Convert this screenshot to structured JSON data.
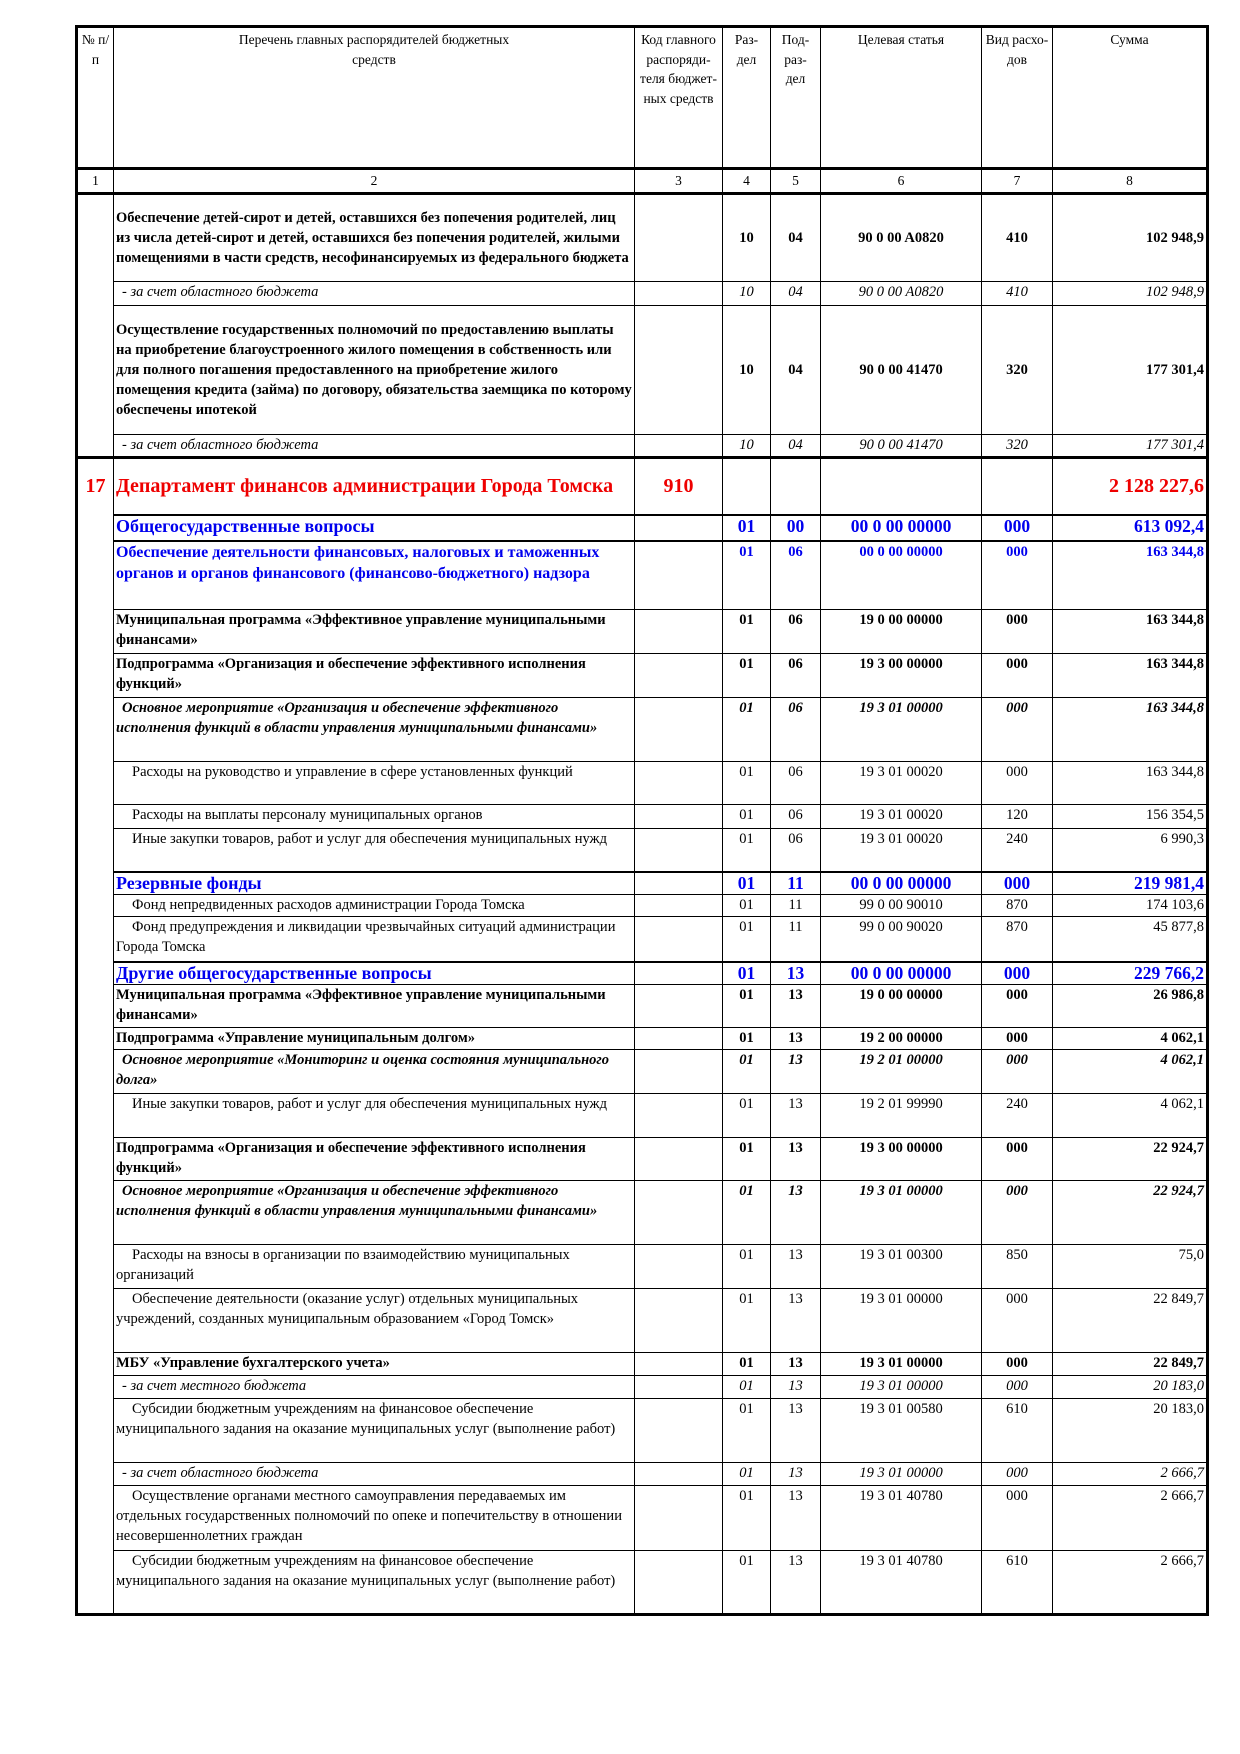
{
  "header": {
    "columns": [
      "№ п/п",
      "Перечень главных распорядителей бюджетных средств",
      "Код главного распоряди-теля бюджет-ных средств",
      "Раз-дел",
      "Под-раз-дел",
      "Целевая статья",
      "Вид расхо-дов",
      "Сумма"
    ],
    "numbers": [
      "1",
      "2",
      "3",
      "4",
      "5",
      "6",
      "7",
      "8"
    ]
  },
  "rows": [
    {
      "num": "",
      "name": "Обеспечение детей-сирот и детей, оставшихся без попечения родителей, лиц из числа детей-сирот и детей, оставшихся без попечения родителей, жилыми помещениями в части средств, несофинансируемых из федерального бюджета",
      "code": "",
      "razdel": "10",
      "podrazdel": "04",
      "article": "90 0 00 A0820",
      "vid": "410",
      "sum": "102 948,9",
      "style": "bold-mid"
    },
    {
      "num": "",
      "name": "- за счет областного бюджета",
      "code": "",
      "razdel": "10",
      "podrazdel": "04",
      "article": "90 0 00 A0820",
      "vid": "410",
      "sum": "102 948,9",
      "style": "italic"
    },
    {
      "num": "",
      "name": "Осуществление государственных полномочий по предоставлению выплаты на приобретение благоустроенного жилого помещения в собственность или для полного погашения предоставленного на приобретение жилого помещения кредита (займа) по договору, обязательства заемщика по которому обеспечены ипотекой",
      "code": "",
      "razdel": "10",
      "podrazdel": "04",
      "article": "90 0 00 41470",
      "vid": "320",
      "sum": "177 301,4",
      "style": "bold-mid"
    },
    {
      "num": "",
      "name": "- за счет областного бюджета",
      "code": "",
      "razdel": "10",
      "podrazdel": "04",
      "article": "90 0 00 41470",
      "vid": "320",
      "sum": "177 301,4",
      "style": "italic"
    },
    {
      "num": "17",
      "name": "Департамент финансов администрации Города Томска",
      "code": "910",
      "razdel": "",
      "podrazdel": "",
      "article": "",
      "vid": "",
      "sum": "2 128 227,6",
      "style": "red"
    },
    {
      "num": "",
      "name": "Общегосударственные вопросы",
      "code": "",
      "razdel": "01",
      "podrazdel": "00",
      "article": "00 0 00 00000",
      "vid": "000",
      "sum": "613 092,4",
      "style": "blue-big"
    },
    {
      "num": "",
      "name": "Обеспечение деятельности финансовых, налоговых и таможенных органов и органов финансового (финансово-бюджетного) надзора",
      "code": "",
      "razdel": "01",
      "podrazdel": "06",
      "article": "00 0 00 00000",
      "vid": "000",
      "sum": "163 344,8",
      "style": "blue"
    },
    {
      "num": "",
      "name": "Муниципальная программа «Эффективное управление муниципальными финансами»",
      "code": "",
      "razdel": "01",
      "podrazdel": "06",
      "article": "19 0 00 00000",
      "vid": "000",
      "sum": "163 344,8",
      "style": "bold"
    },
    {
      "num": "",
      "name": "Подпрограмма «Организация и обеспечение эффективного исполнения функций»",
      "code": "",
      "razdel": "01",
      "podrazdel": "06",
      "article": "19 3 00 00000",
      "vid": "000",
      "sum": "163 344,8",
      "style": "bold"
    },
    {
      "num": "",
      "name": "Основное мероприятие «Организация и обеспечение эффективного исполнения функций в области управления муниципальными финансами»",
      "code": "",
      "razdel": "01",
      "podrazdel": "06",
      "article": "19 3 01 00000",
      "vid": "000",
      "sum": "163 344,8",
      "style": "bold-italic"
    },
    {
      "num": "",
      "name": "Расходы на руководство и управление в сфере установленных функций",
      "code": "",
      "razdel": "01",
      "podrazdel": "06",
      "article": "19 3 01 00020",
      "vid": "000",
      "sum": "163 344,8",
      "style": "regular"
    },
    {
      "num": "",
      "name": "Расходы на выплаты персоналу муниципальных органов",
      "code": "",
      "razdel": "01",
      "podrazdel": "06",
      "article": "19 3 01 00020",
      "vid": "120",
      "sum": "156 354,5",
      "style": "regular"
    },
    {
      "num": "",
      "name": "Иные закупки товаров, работ и услуг для обеспечения муниципальных нужд",
      "code": "",
      "razdel": "01",
      "podrazdel": "06",
      "article": "19 3 01 00020",
      "vid": "240",
      "sum": "6 990,3",
      "style": "regular"
    },
    {
      "num": "",
      "name": "Резервные фонды",
      "code": "",
      "razdel": "01",
      "podrazdel": "11",
      "article": "00 0 00 00000",
      "vid": "000",
      "sum": "219 981,4",
      "style": "blue-big"
    },
    {
      "num": "",
      "name": "Фонд непредвиденных расходов администрации Города Томска",
      "code": "",
      "razdel": "01",
      "podrazdel": "11",
      "article": "99 0 00 90010",
      "vid": "870",
      "sum": "174 103,6",
      "style": "regular"
    },
    {
      "num": "",
      "name": "Фонд предупреждения и ликвидации чрезвычайных ситуаций администрации Города Томска",
      "code": "",
      "razdel": "01",
      "podrazdel": "11",
      "article": "99 0 00 90020",
      "vid": "870",
      "sum": "45 877,8",
      "style": "regular"
    },
    {
      "num": "",
      "name": "Другие общегосударственные вопросы",
      "code": "",
      "razdel": "01",
      "podrazdel": "13",
      "article": "00 0 00 00000",
      "vid": "000",
      "sum": "229 766,2",
      "style": "blue-big"
    },
    {
      "num": "",
      "name": "Муниципальная программа «Эффективное управление муниципальными финансами»",
      "code": "",
      "razdel": "01",
      "podrazdel": "13",
      "article": "19 0 00 00000",
      "vid": "000",
      "sum": "26 986,8",
      "style": "bold"
    },
    {
      "num": "",
      "name": "Подпрограмма «Управление муниципальным долгом»",
      "code": "",
      "razdel": "01",
      "podrazdel": "13",
      "article": "19 2 00 00000",
      "vid": "000",
      "sum": "4 062,1",
      "style": "bold"
    },
    {
      "num": "",
      "name": "Основное мероприятие «Мониторинг и оценка состояния муниципального долга»",
      "code": "",
      "razdel": "01",
      "podrazdel": "13",
      "article": "19 2 01 00000",
      "vid": "000",
      "sum": "4 062,1",
      "style": "bold-italic"
    },
    {
      "num": "",
      "name": "Иные закупки товаров, работ и услуг для обеспечения муниципальных нужд",
      "code": "",
      "razdel": "01",
      "podrazdel": "13",
      "article": "19 2 01 99990",
      "vid": "240",
      "sum": "4 062,1",
      "style": "regular"
    },
    {
      "num": "",
      "name": "Подпрограмма «Организация и обеспечение эффективного исполнения функций»",
      "code": "",
      "razdel": "01",
      "podrazdel": "13",
      "article": "19 3 00 00000",
      "vid": "000",
      "sum": "22 924,7",
      "style": "bold"
    },
    {
      "num": "",
      "name": "Основное мероприятие «Организация и обеспечение эффективного исполнения функций в области управления муниципальными финансами»",
      "code": "",
      "razdel": "01",
      "podrazdel": "13",
      "article": "19 3 01 00000",
      "vid": "000",
      "sum": "22 924,7",
      "style": "bold-italic"
    },
    {
      "num": "",
      "name": "Расходы на взносы в организации по взаимодействию муниципальных организаций",
      "code": "",
      "razdel": "01",
      "podrazdel": "13",
      "article": "19 3 01 00300",
      "vid": "850",
      "sum": "75,0",
      "style": "regular"
    },
    {
      "num": "",
      "name": "Обеспечение деятельности (оказание услуг) отдельных муниципальных учреждений, созданных муниципальным образованием «Город Томск»",
      "code": "",
      "razdel": "01",
      "podrazdel": "13",
      "article": "19 3 01 00000",
      "vid": "000",
      "sum": "22 849,7",
      "style": "regular"
    },
    {
      "num": "",
      "name": "МБУ «Управление бухгалтерского учета»",
      "code": "",
      "razdel": "01",
      "podrazdel": "13",
      "article": "19 3 01 00000",
      "vid": "000",
      "sum": "22 849,7",
      "style": "bold"
    },
    {
      "num": "",
      "name": "- за счет местного бюджета",
      "code": "",
      "razdel": "01",
      "podrazdel": "13",
      "article": "19 3 01 00000",
      "vid": "000",
      "sum": "20 183,0",
      "style": "italic"
    },
    {
      "num": "",
      "name": "Субсидии бюджетным учреждениям на финансовое обеспечение муниципального задания на оказание муниципальных услуг (выполнение работ)",
      "code": "",
      "razdel": "01",
      "podrazdel": "13",
      "article": "19 3 01 00580",
      "vid": "610",
      "sum": "20 183,0",
      "style": "regular"
    },
    {
      "num": "",
      "name": "- за счет областного бюджета",
      "code": "",
      "razdel": "01",
      "podrazdel": "13",
      "article": "19 3 01 00000",
      "vid": "000",
      "sum": "2 666,7",
      "style": "italic"
    },
    {
      "num": "",
      "name": "Осуществление органами местного самоуправления передаваемых им отдельных государственных полномочий по опеке и попечительству в отношении несовершеннолетних граждан",
      "code": "",
      "razdel": "01",
      "podrazdel": "13",
      "article": "19 3 01 40780",
      "vid": "000",
      "sum": "2 666,7",
      "style": "regular"
    },
    {
      "num": "",
      "name": "Субсидии бюджетным учреждениям на финансовое обеспечение муниципального задания на оказание муниципальных услуг (выполнение работ)",
      "code": "",
      "razdel": "01",
      "podrazdel": "13",
      "article": "19 3 01 40780",
      "vid": "610",
      "sum": "2 666,7",
      "style": "regular"
    }
  ],
  "colors": {
    "department": "#ee0000",
    "section": "#0000ee",
    "text": "#000000"
  }
}
